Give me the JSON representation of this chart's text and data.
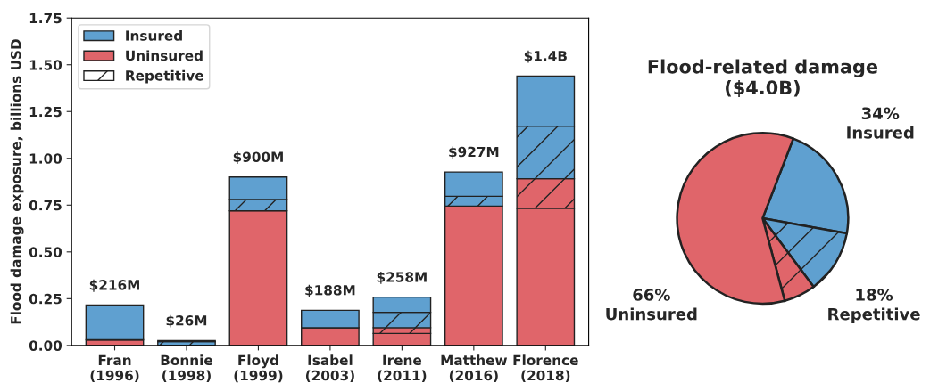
{
  "chart_data": [
    {
      "type": "bar",
      "stacked": true,
      "ylabel": "Flood damage exposure, billions USD",
      "categories": [
        "Fran\n(1996)",
        "Bonnie\n(1998)",
        "Floyd\n(1999)",
        "Isabel\n(2003)",
        "Irene\n(2011)",
        "Matthew\n(2016)",
        "Florence\n(2018)"
      ],
      "series": [
        {
          "name": "Uninsured",
          "color": "#e0656a",
          "values": [
            0.03,
            null,
            0.72,
            0.095,
            0.064,
            0.745,
            0.733
          ]
        },
        {
          "color": "#e0656a",
          "values": [
            0,
            0,
            0,
            0,
            0.031,
            0,
            0.158
          ]
        },
        {
          "color": "#5fa0d0",
          "values": [
            0,
            0.02,
            0.06,
            0,
            0.082,
            0.052,
            0.281
          ]
        },
        {
          "name": "Insured",
          "color": "#5fa0d0",
          "values": [
            0.186,
            0.006,
            0.12,
            0.093,
            0.081,
            0.13,
            0.268
          ]
        }
      ],
      "totals": [
        "$216M",
        "$26M",
        "$900M",
        "$188M",
        "$258M",
        "$927M",
        "$1.4B"
      ],
      "annotations": [
        "Repetitive"
      ],
      "ylim": [
        0,
        1.75
      ],
      "yticks": [
        {
          "value": 0,
          "label": "0.00"
        },
        {
          "value": 0.25,
          "label": "0.25"
        },
        {
          "value": 0.5,
          "label": "0.50"
        },
        {
          "value": 0.75,
          "label": "0.75"
        },
        {
          "value": 1,
          "label": "1.00"
        },
        {
          "value": 1.25,
          "label": "1.25"
        },
        {
          "value": 1.5,
          "label": "1.50"
        },
        {
          "value": 1.75,
          "label": "1.75"
        }
      ],
      "legend": "top left"
    },
    {
      "type": "pie",
      "title": "Flood-related damage\n($4.0B)",
      "categories": [
        null,
        null,
        null,
        null
      ],
      "values": [
        22,
        12,
        6,
        60
      ],
      "colors": [
        "#5fa0d0",
        "#5fa0d0",
        "#e0656a",
        "#e0656a"
      ],
      "annotations": [
        "34%\nInsured",
        "18%\nRepetitive",
        "66%\nUninsured"
      ]
    }
  ]
}
